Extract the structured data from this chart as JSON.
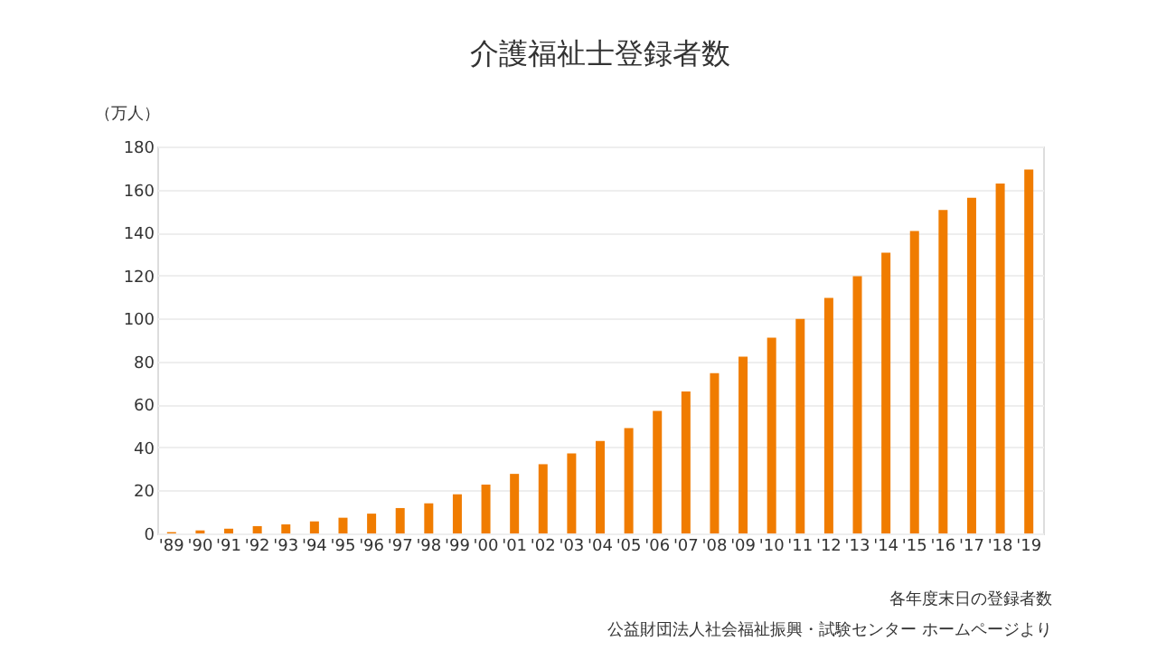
{
  "chart_data": {
    "type": "bar",
    "title": "介護福祉士登録者数",
    "ylabel": "（万人）",
    "categories": [
      "'89",
      "'90",
      "'91",
      "'92",
      "'93",
      "'94",
      "'95",
      "'96",
      "'97",
      "'98",
      "'99",
      "'00",
      "'01",
      "'02",
      "'03",
      "'04",
      "'05",
      "'06",
      "'07",
      "'08",
      "'09",
      "'10",
      "'11",
      "'12",
      "'13",
      "'14",
      "'15",
      "'16",
      "'17",
      "'18",
      "'19"
    ],
    "values": [
      0.6,
      1.4,
      2.2,
      3.4,
      4.2,
      5.6,
      7.3,
      9.2,
      11.8,
      14,
      18.2,
      22.7,
      27.7,
      32.2,
      37.2,
      43,
      49,
      57,
      66,
      74.5,
      82.2,
      91.1,
      99.8,
      109.6,
      119.7,
      130.6,
      140.7,
      150.5,
      156.1,
      162.8,
      169.3
    ],
    "color": "#f07c00",
    "ylim": [
      0,
      180
    ],
    "yticks": [
      0,
      20,
      40,
      60,
      80,
      100,
      120,
      140,
      160,
      180
    ],
    "grid": "y",
    "annotations": [
      "各年度末日の登録者数",
      "公益財団法人社会福祉振興・試験センター ホームページより"
    ]
  }
}
